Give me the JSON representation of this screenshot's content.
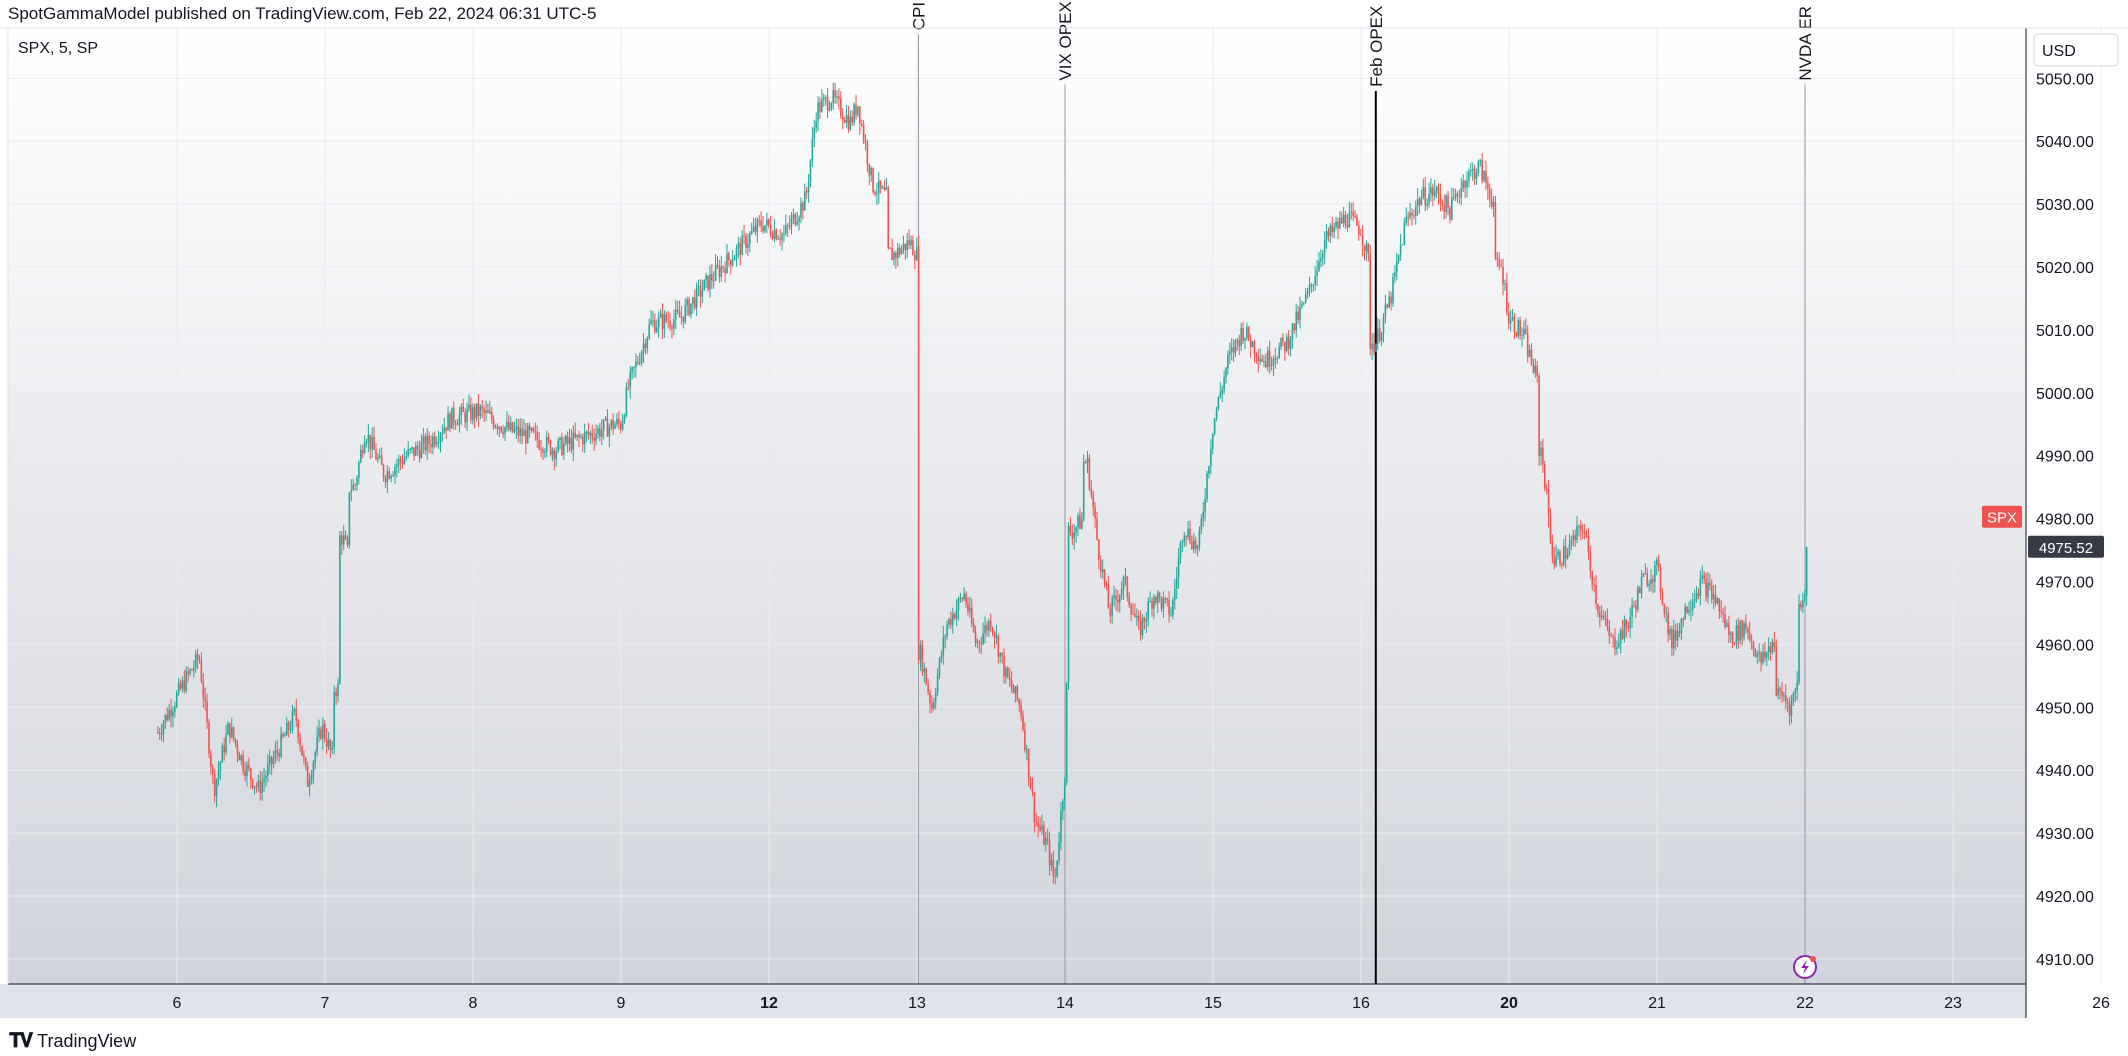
{
  "header": {
    "published": "SpotGammaModel published on TradingView.com, Feb 22, 2024 06:31 UTC-5"
  },
  "footer": {
    "brand": "TradingView",
    "logo_icon": "tradingview-logo-icon"
  },
  "colors": {
    "up": "#26a69a",
    "down": "#ef5350",
    "label_bg": "#ef5350",
    "price_label_bg": "#363a45"
  },
  "chart_data": {
    "type": "candlestick",
    "title": "",
    "legend": "SPX, 5, SP",
    "currency": "USD",
    "series_label": "SPX",
    "last_price": 4975.52,
    "y_range": [
      4906,
      5058
    ],
    "y_ticks": [
      4910,
      4920,
      4930,
      4940,
      4950,
      4960,
      4970,
      4980,
      4990,
      5000,
      5010,
      5020,
      5030,
      5040,
      5050
    ],
    "y_tick_labels": [
      "4910.00",
      "4920.00",
      "4930.00",
      "4940.00",
      "4950.00",
      "4960.00",
      "4970.00",
      "4980.00",
      "4990.00",
      "5000.00",
      "5010.00",
      "5020.00",
      "5030.00",
      "5040.00",
      "5050.00"
    ],
    "x_ticks": [
      {
        "label": "6",
        "bold": false
      },
      {
        "label": "7",
        "bold": false
      },
      {
        "label": "8",
        "bold": false
      },
      {
        "label": "9",
        "bold": false
      },
      {
        "label": "12",
        "bold": true
      },
      {
        "label": "13",
        "bold": false
      },
      {
        "label": "14",
        "bold": false
      },
      {
        "label": "15",
        "bold": false
      },
      {
        "label": "16",
        "bold": false
      },
      {
        "label": "20",
        "bold": true
      },
      {
        "label": "21",
        "bold": false
      },
      {
        "label": "22",
        "bold": false
      },
      {
        "label": "23",
        "bold": false
      },
      {
        "label": "26",
        "bold": false
      }
    ],
    "x_range": [
      -0.13,
      13.5
    ],
    "event_lines": [
      {
        "label": "CPI",
        "x": 5.01,
        "y_top": 5057,
        "heavy": false
      },
      {
        "label": "VIX OPEX",
        "x": 6.0,
        "y_top": 5049,
        "heavy": false
      },
      {
        "label": "Feb OPEX",
        "x": 8.1,
        "y_top": 5048,
        "heavy": true
      },
      {
        "label": "NVDA ER",
        "x": 11.0,
        "y_top": 5049,
        "heavy": false
      }
    ],
    "price_path": [
      [
        -0.13,
        4946
      ],
      [
        0.05,
        4954
      ],
      [
        0.15,
        4958
      ],
      [
        0.25,
        4937
      ],
      [
        0.35,
        4947
      ],
      [
        0.45,
        4941
      ],
      [
        0.55,
        4937
      ],
      [
        0.7,
        4944
      ],
      [
        0.8,
        4949
      ],
      [
        0.88,
        4938
      ],
      [
        0.98,
        4947
      ],
      [
        1.05,
        4942
      ],
      [
        1.1,
        4953
      ],
      [
        1.12,
        4977
      ],
      [
        1.16,
        4974
      ],
      [
        1.2,
        4985
      ],
      [
        1.27,
        4994
      ],
      [
        1.4,
        4987
      ],
      [
        1.55,
        4990
      ],
      [
        1.7,
        4992
      ],
      [
        1.85,
        4996
      ],
      [
        2.05,
        4997
      ],
      [
        2.25,
        4994
      ],
      [
        2.4,
        4993
      ],
      [
        2.55,
        4991
      ],
      [
        2.75,
        4993
      ],
      [
        2.95,
        4995
      ],
      [
        3.0,
        4995
      ],
      [
        3.05,
        5001
      ],
      [
        3.2,
        5011
      ],
      [
        3.4,
        5012
      ],
      [
        3.6,
        5018
      ],
      [
        3.8,
        5023
      ],
      [
        3.95,
        5027
      ],
      [
        4.1,
        5025
      ],
      [
        4.25,
        5031
      ],
      [
        4.32,
        5045
      ],
      [
        4.42,
        5047
      ],
      [
        4.55,
        5043
      ],
      [
        4.6,
        5046
      ],
      [
        4.7,
        5033
      ],
      [
        4.8,
        5031
      ],
      [
        4.85,
        5022
      ],
      [
        4.95,
        5024
      ],
      [
        5.0,
        5022
      ],
      [
        5.02,
        4959
      ],
      [
        5.1,
        4950
      ],
      [
        5.2,
        4963
      ],
      [
        5.32,
        4968
      ],
      [
        5.4,
        4960
      ],
      [
        5.5,
        4964
      ],
      [
        5.6,
        4955
      ],
      [
        5.7,
        4950
      ],
      [
        5.8,
        4932
      ],
      [
        5.88,
        4928
      ],
      [
        5.93,
        4922
      ],
      [
        6.0,
        4940
      ],
      [
        6.02,
        4953
      ],
      [
        6.05,
        4978
      ],
      [
        6.12,
        4980
      ],
      [
        6.15,
        4989
      ],
      [
        6.22,
        4976
      ],
      [
        6.3,
        4965
      ],
      [
        6.4,
        4970
      ],
      [
        6.5,
        4962
      ],
      [
        6.6,
        4968
      ],
      [
        6.72,
        4965
      ],
      [
        6.8,
        4979
      ],
      [
        6.9,
        4975
      ],
      [
        7.0,
        4995
      ],
      [
        7.1,
        5005
      ],
      [
        7.2,
        5010
      ],
      [
        7.35,
        5005
      ],
      [
        7.5,
        5008
      ],
      [
        7.65,
        5016
      ],
      [
        7.75,
        5024
      ],
      [
        7.9,
        5028
      ],
      [
        8.0,
        5026
      ],
      [
        8.05,
        5021
      ],
      [
        8.1,
        5008
      ],
      [
        8.2,
        5015
      ],
      [
        8.3,
        5027
      ],
      [
        8.4,
        5031
      ],
      [
        8.5,
        5032
      ],
      [
        8.6,
        5029
      ],
      [
        8.7,
        5034
      ],
      [
        8.8,
        5036
      ],
      [
        8.9,
        5030
      ],
      [
        8.95,
        5020
      ],
      [
        9.0,
        5012
      ],
      [
        9.1,
        5009
      ],
      [
        9.2,
        5001
      ],
      [
        9.22,
        4991
      ],
      [
        9.3,
        4973
      ],
      [
        9.4,
        4975
      ],
      [
        9.5,
        4979
      ],
      [
        9.6,
        4966
      ],
      [
        9.7,
        4960
      ],
      [
        9.8,
        4963
      ],
      [
        9.9,
        4970
      ],
      [
        10.0,
        4972
      ],
      [
        10.1,
        4960
      ],
      [
        10.2,
        4966
      ],
      [
        10.3,
        4970
      ],
      [
        10.4,
        4967
      ],
      [
        10.5,
        4961
      ],
      [
        10.6,
        4963
      ],
      [
        10.7,
        4957
      ],
      [
        10.8,
        4961
      ],
      [
        10.85,
        4952
      ],
      [
        10.9,
        4950
      ],
      [
        10.95,
        4954
      ],
      [
        11.0,
        4967
      ],
      [
        11.02,
        4976
      ]
    ]
  }
}
